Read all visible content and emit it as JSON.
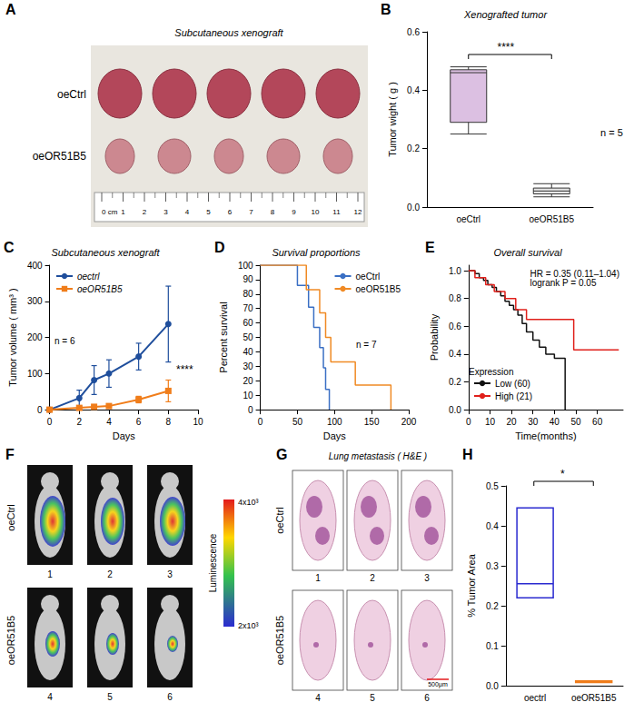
{
  "chart_data": [
    {
      "panel": "B",
      "type": "boxplot",
      "title": "Xenografted tumor",
      "ylabel": "Tumor wight ( g )",
      "categories": [
        "oeCtrl",
        "oeOR51B5"
      ],
      "values": [
        [
          0.25,
          0.29,
          0.46,
          0.47,
          0.48
        ],
        [
          0.035,
          0.045,
          0.055,
          0.065,
          0.08
        ]
      ],
      "colors": [
        "#dcc0e2",
        "#e6e6e6"
      ],
      "ylim": [
        0,
        0.6
      ],
      "yticks": [
        {
          "value": 0,
          "label": "0.0"
        },
        {
          "value": 0.2,
          "label": "0.2"
        },
        {
          "value": 0.4,
          "label": "0.4"
        },
        {
          "value": 0.6,
          "label": "0.6"
        }
      ],
      "annotations": [
        "****",
        "n = 5"
      ]
    },
    {
      "panel": "C",
      "type": "line",
      "title": "Subcutaneous xenograft",
      "xlabel": "Days",
      "ylabel": "Tumor volume ( mm³ )",
      "x": [
        0,
        2,
        3,
        4,
        6,
        8
      ],
      "series": [
        {
          "name": "oectrl",
          "color": "#1f4e9c",
          "marker": "circle",
          "values": [
            0,
            32,
            82,
            100,
            147,
            237
          ],
          "errors": [
            0,
            22,
            40,
            38,
            37,
            105
          ]
        },
        {
          "name": "oeOR51B5",
          "color": "#f07d1a",
          "marker": "square",
          "values": [
            0,
            5,
            8,
            10,
            28,
            52
          ],
          "errors": [
            0,
            3,
            4,
            5,
            9,
            30
          ]
        }
      ],
      "xlim": [
        0,
        10
      ],
      "xticks": [
        0,
        2,
        4,
        6,
        8,
        10
      ],
      "ylim": [
        0,
        400
      ],
      "yticks": [
        0,
        100,
        200,
        300,
        400
      ],
      "legend": "top-left",
      "annotations": [
        "n = 6",
        "****"
      ]
    },
    {
      "panel": "D",
      "type": "step",
      "title": "Survival proportions",
      "xlabel": "Days",
      "ylabel": "Percent survival",
      "series": [
        {
          "name": "oeCtrl",
          "color": "#3a6fc4",
          "x": [
            0,
            50,
            65,
            72,
            80,
            85,
            88,
            93
          ],
          "values": [
            100,
            86,
            71,
            57,
            43,
            29,
            14,
            0
          ]
        },
        {
          "name": "oeOR51B5",
          "color": "#f08a24",
          "x": [
            0,
            62,
            80,
            88,
            95,
            128,
            176
          ],
          "values": [
            100,
            83,
            67,
            50,
            33,
            17,
            0
          ]
        }
      ],
      "xlim": [
        0,
        200
      ],
      "xticks": [
        0,
        50,
        100,
        150,
        200
      ],
      "ylim": [
        0,
        100
      ],
      "yticks": [
        0,
        10,
        20,
        30,
        40,
        50,
        60,
        70,
        80,
        90,
        100
      ],
      "legend": "top-right",
      "annotations": [
        "n = 7"
      ]
    },
    {
      "panel": "E",
      "type": "step",
      "title": "Overall survival",
      "xlabel": "Time(months)",
      "ylabel": "Probability",
      "legend_title": "Expression",
      "series": [
        {
          "name": "Low (60)",
          "color": "#111111",
          "x": [
            0,
            3,
            5,
            7,
            9,
            11,
            13,
            15,
            17,
            19,
            21,
            23,
            25,
            27,
            30,
            33,
            36,
            40,
            45
          ],
          "values": [
            1,
            0.98,
            0.95,
            0.93,
            0.9,
            0.88,
            0.85,
            0.82,
            0.78,
            0.75,
            0.72,
            0.68,
            0.62,
            0.56,
            0.5,
            0.45,
            0.4,
            0.37,
            0
          ]
        },
        {
          "name": "High (21)",
          "color": "#e0201b",
          "x": [
            0,
            3,
            8,
            12,
            17,
            22,
            27,
            49,
            70
          ],
          "values": [
            1,
            0.95,
            0.9,
            0.85,
            0.8,
            0.72,
            0.65,
            0.43,
            0.43
          ]
        }
      ],
      "xlim": [
        0,
        72
      ],
      "xticks": [
        0,
        10,
        20,
        30,
        40,
        50,
        60
      ],
      "ylim": [
        0,
        1.04
      ],
      "yticks": [
        {
          "value": 0,
          "label": "0.0"
        },
        {
          "value": 0.2,
          "label": "0.2"
        },
        {
          "value": 0.4,
          "label": "0.4"
        },
        {
          "value": 0.6,
          "label": "0.6"
        },
        {
          "value": 0.8,
          "label": "0.8"
        },
        {
          "value": 1,
          "label": "1.0"
        }
      ],
      "legend": "bottom-left",
      "annotations": [
        "HR = 0.35 (0.11–1.04)",
        "logrank P = 0.05"
      ]
    },
    {
      "panel": "H",
      "type": "floating_box",
      "ylabel": "% Tumor Area",
      "categories": [
        "oectrl",
        "oeOR51B5"
      ],
      "values": [
        [
          0.22,
          0.22,
          0.255,
          0.445,
          0.445
        ],
        [
          0.008,
          0.008,
          0.01,
          0.012,
          0.012
        ]
      ],
      "colors": [
        "#2a2ad0",
        "#f07d1a"
      ],
      "ylim": [
        0,
        0.5
      ],
      "yticks": [
        {
          "value": 0,
          "label": "0.0"
        },
        {
          "value": 0.1,
          "label": "0.1"
        },
        {
          "value": 0.2,
          "label": "0.2"
        },
        {
          "value": 0.3,
          "label": "0.3"
        },
        {
          "value": 0.4,
          "label": "0.4"
        },
        {
          "value": 0.5,
          "label": "0.5"
        }
      ],
      "annotations": [
        "*"
      ]
    }
  ],
  "images": [
    {
      "panel": "A",
      "title": "Subcutaneous xenograft",
      "rows": [
        "oeCtrl",
        "oeOR51B5"
      ],
      "ruler": [
        "0 cm",
        "1",
        "2",
        "3",
        "4",
        "5",
        "6",
        "7",
        "8",
        "9",
        "10",
        "11",
        "12"
      ]
    },
    {
      "panel": "F",
      "rows": [
        "oeCtrl",
        "oeOR51B5"
      ],
      "numbers": [
        "1",
        "2",
        "3",
        "4",
        "5",
        "6"
      ],
      "colorbar": {
        "title": "Luminescence",
        "labels": [
          "4x10³",
          "2x10³"
        ]
      }
    },
    {
      "panel": "G",
      "title": "Lung metastasis ( H&E )",
      "rows": [
        "oeCtrl",
        "oeOR51B5"
      ],
      "numbers": [
        "1",
        "2",
        "3",
        "4",
        "5",
        "6"
      ],
      "scale_bar": "500μm"
    }
  ]
}
